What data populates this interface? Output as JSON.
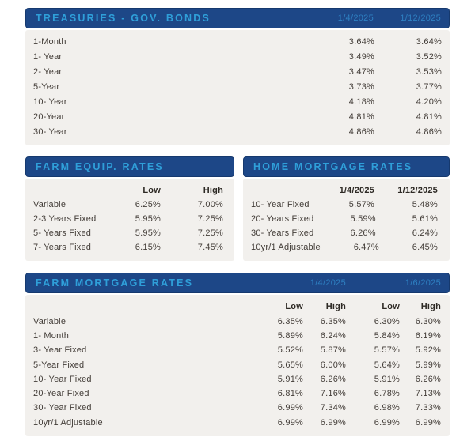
{
  "colors": {
    "header_bg": "#1d4787",
    "header_title": "#2f9fd9",
    "header_date": "#2e80c2",
    "panel_bg": "#f2f0ed",
    "row_text": "#433d38"
  },
  "treasuries": {
    "title": "TREASURIES - GOV. BONDS",
    "dates": [
      "1/4/2025",
      "1/12/2025"
    ],
    "rows": [
      {
        "label": "1-Month",
        "values": [
          "3.64%",
          "3.64%"
        ]
      },
      {
        "label": "1- Year",
        "values": [
          "3.49%",
          "3.52%"
        ]
      },
      {
        "label": "2- Year",
        "values": [
          "3.47%",
          "3.53%"
        ]
      },
      {
        "label": "5-Year",
        "values": [
          "3.73%",
          "3.77%"
        ]
      },
      {
        "label": "10- Year",
        "values": [
          "4.18%",
          "4.20%"
        ]
      },
      {
        "label": "20-Year",
        "values": [
          "4.81%",
          "4.81%"
        ]
      },
      {
        "label": "30- Year",
        "values": [
          "4.86%",
          "4.86%"
        ]
      }
    ]
  },
  "farm_equip": {
    "title": "FARM EQUIP. RATES",
    "columns": [
      "Low",
      "High"
    ],
    "rows": [
      {
        "label": "Variable",
        "values": [
          "6.25%",
          "7.00%"
        ]
      },
      {
        "label": "2-3 Years Fixed",
        "values": [
          "5.95%",
          "7.25%"
        ]
      },
      {
        "label": "5- Years Fixed",
        "values": [
          "5.95%",
          "7.25%"
        ]
      },
      {
        "label": "7- Years Fixed",
        "values": [
          "6.15%",
          "7.45%"
        ]
      }
    ]
  },
  "home_mortgage": {
    "title": "HOME MORTGAGE RATES",
    "columns": [
      "1/4/2025",
      "1/12/2025"
    ],
    "rows": [
      {
        "label": "10- Year Fixed",
        "values": [
          "5.57%",
          "5.48%"
        ]
      },
      {
        "label": "20- Years Fixed",
        "values": [
          "5.59%",
          "5.61%"
        ]
      },
      {
        "label": "30- Years Fixed",
        "values": [
          "6.26%",
          "6.24%"
        ]
      },
      {
        "label": "10yr/1 Adjustable",
        "values": [
          "6.47%",
          "6.45%"
        ]
      }
    ]
  },
  "farm_mortgage": {
    "title": "FARM MORTGAGE RATES",
    "dates": [
      "1/4/2025",
      "1/6/2025"
    ],
    "columns": [
      "Low",
      "High",
      "Low",
      "High"
    ],
    "rows": [
      {
        "label": "Variable",
        "values": [
          "6.35%",
          "6.35%",
          "6.30%",
          "6.30%"
        ]
      },
      {
        "label": "1- Month",
        "values": [
          "5.89%",
          "6.24%",
          "5.84%",
          "6.19%"
        ]
      },
      {
        "label": "3- Year Fixed",
        "values": [
          "5.52%",
          "5.87%",
          "5.57%",
          "5.92%"
        ]
      },
      {
        "label": "5-Year Fixed",
        "values": [
          "5.65%",
          "6.00%",
          "5.64%",
          "5.99%"
        ]
      },
      {
        "label": "10- Year Fixed",
        "values": [
          "5.91%",
          "6.26%",
          "5.91%",
          "6.26%"
        ]
      },
      {
        "label": "20-Year Fixed",
        "values": [
          "6.81%",
          "7.16%",
          "6.78%",
          "7.13%"
        ]
      },
      {
        "label": "30- Year Fixed",
        "values": [
          "6.99%",
          "7.34%",
          "6.98%",
          "7.33%"
        ]
      },
      {
        "label": "10yr/1 Adjustable",
        "values": [
          "6.99%",
          "6.99%",
          "6.99%",
          "6.99%"
        ]
      }
    ]
  }
}
